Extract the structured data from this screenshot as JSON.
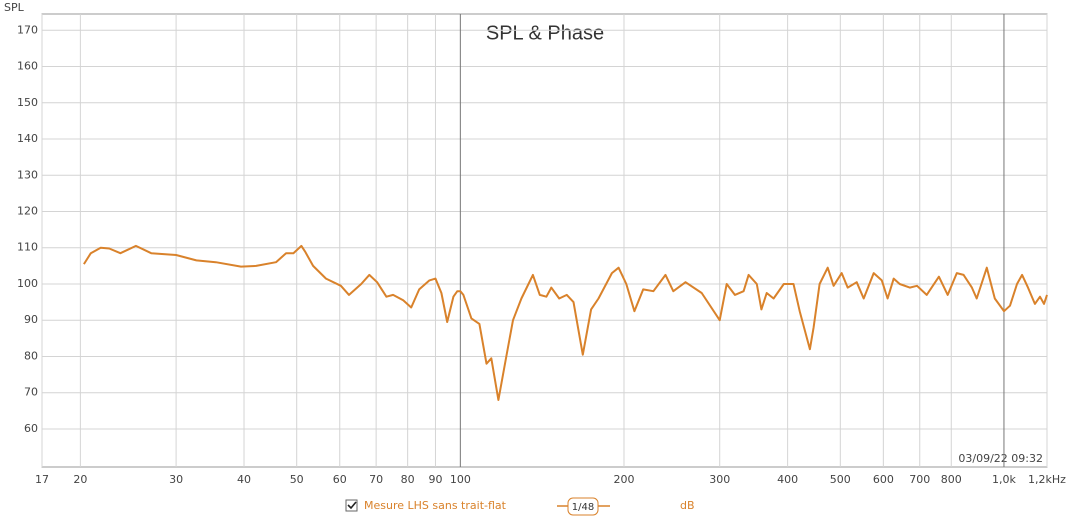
{
  "chart_data": {
    "type": "line",
    "title": "SPL & Phase",
    "y_label": "SPL",
    "timestamp": "03/09/22 09:32",
    "x_scale": "log",
    "grid": true,
    "xlim": [
      17,
      1200
    ],
    "ylim": [
      49.5,
      174.5
    ],
    "xticks": [
      17,
      20,
      30,
      40,
      50,
      60,
      70,
      80,
      90,
      100,
      200,
      300,
      400,
      500,
      600,
      700,
      800,
      {
        "value": 1000,
        "label": "1,0k"
      },
      {
        "value": 1200,
        "label": "1,2kHz"
      }
    ],
    "yticks": [
      60,
      70,
      80,
      90,
      100,
      110,
      120,
      130,
      140,
      150,
      160,
      170
    ],
    "legend": {
      "smoothing": "1/48",
      "unit": "dB"
    },
    "x": [
      20.3,
      20.9,
      21.8,
      22.6,
      23.7,
      25.3,
      27,
      30,
      32.7,
      35.5,
      39.5,
      42.1,
      45.8,
      47.8,
      49.3,
      51,
      51.8,
      53.6,
      56.6,
      60.3,
      62.4,
      65.7,
      68,
      70.3,
      73.1,
      75.2,
      78.5,
      81.2,
      84,
      87.7,
      90,
      92.3,
      94.6,
      97.1,
      98.7,
      100,
      101.3,
      104.8,
      108.4,
      111.7,
      114,
      117.5,
      121.5,
      125,
      129.5,
      136,
      140,
      144,
      147,
      152,
      157,
      161.5,
      168,
      174,
      179.5,
      190,
      195.5,
      202,
      209,
      217,
      226.5,
      238.5,
      246.5,
      259.5,
      278,
      300,
      309,
      320,
      332,
      339,
      351,
      358,
      366,
      377,
      393.5,
      410,
      421,
      439.5,
      446.5,
      458,
      474,
      486,
      503,
      516,
      536,
      552,
      576,
      596,
      611,
      627,
      643,
      671,
      692,
      721,
      759,
      788,
      819,
      843,
      873,
      891,
      930,
      962,
      1000,
      1026,
      1057,
      1080,
      1107,
      1140,
      1165,
      1185,
      1200
    ],
    "series": [
      {
        "name": "Mesure LHS sans trait-flat",
        "color": "#d9822b",
        "values": [
          105.5,
          108.5,
          110,
          109.8,
          108.5,
          110.5,
          108.5,
          108,
          106.5,
          106,
          104.8,
          105,
          106,
          108.5,
          108.5,
          110.5,
          109,
          105,
          101.5,
          99.5,
          97,
          100,
          102.5,
          100.5,
          96.5,
          97,
          95.5,
          93.5,
          98.5,
          101,
          101.5,
          97.5,
          89.5,
          96.5,
          98,
          98,
          97,
          90.5,
          89,
          78,
          79.5,
          68,
          80,
          90,
          96,
          102.5,
          97,
          96.5,
          99,
          96,
          97,
          95,
          80.5,
          93,
          96,
          103,
          104.5,
          100,
          92.5,
          98.5,
          98,
          102.5,
          98,
          100.5,
          97.5,
          90,
          100,
          97,
          98,
          102.5,
          100,
          93,
          97.5,
          96,
          100,
          100,
          92.5,
          82,
          88,
          100,
          104.5,
          99.5,
          103,
          99,
          100.5,
          96,
          103,
          101,
          96,
          101.5,
          100,
          99,
          99.5,
          97,
          102,
          97,
          103,
          102.5,
          99,
          96,
          104.5,
          96,
          92.5,
          94,
          100,
          102.5,
          99,
          94.5,
          96.5,
          94.5,
          97
        ]
      }
    ]
  }
}
